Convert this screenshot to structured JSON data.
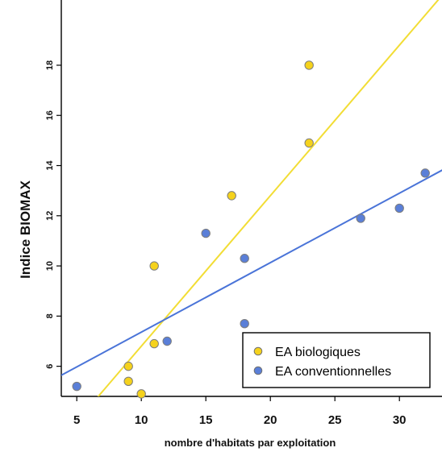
{
  "chart_data": {
    "type": "scatter",
    "title": "",
    "xlabel": "nombre d'habitats par exploitation",
    "ylabel": "Indice BIOMAX",
    "xlim": [
      3.8,
      33.3
    ],
    "ylim": [
      4.8,
      20.6
    ],
    "x_ticks": [
      5,
      10,
      15,
      20,
      25,
      30
    ],
    "y_ticks": [
      6,
      8,
      10,
      12,
      14,
      16,
      18
    ],
    "legend_position": "bottom-right",
    "grid": false,
    "series": [
      {
        "name": "EA biologiques",
        "color": "#f5d21c",
        "line_color": "#f2dd35",
        "points": [
          {
            "x": 9,
            "y": 6.0
          },
          {
            "x": 9,
            "y": 5.4
          },
          {
            "x": 10,
            "y": 4.9
          },
          {
            "x": 11,
            "y": 6.9
          },
          {
            "x": 11,
            "y": 10.0
          },
          {
            "x": 17,
            "y": 12.8
          },
          {
            "x": 23,
            "y": 14.9
          },
          {
            "x": 23,
            "y": 18.0
          }
        ],
        "fit": {
          "slope": 0.6,
          "intercept": 0.8
        }
      },
      {
        "name": "EA conventionnelles",
        "color": "#5a7fd8",
        "line_color": "#4a74d8",
        "points": [
          {
            "x": 5,
            "y": 5.2
          },
          {
            "x": 12,
            "y": 7.0
          },
          {
            "x": 15,
            "y": 11.3
          },
          {
            "x": 18,
            "y": 10.3
          },
          {
            "x": 18,
            "y": 7.7
          },
          {
            "x": 27,
            "y": 11.9
          },
          {
            "x": 30,
            "y": 12.3
          },
          {
            "x": 32,
            "y": 13.7
          }
        ],
        "fit": {
          "slope": 0.277,
          "intercept": 4.59
        }
      }
    ]
  }
}
